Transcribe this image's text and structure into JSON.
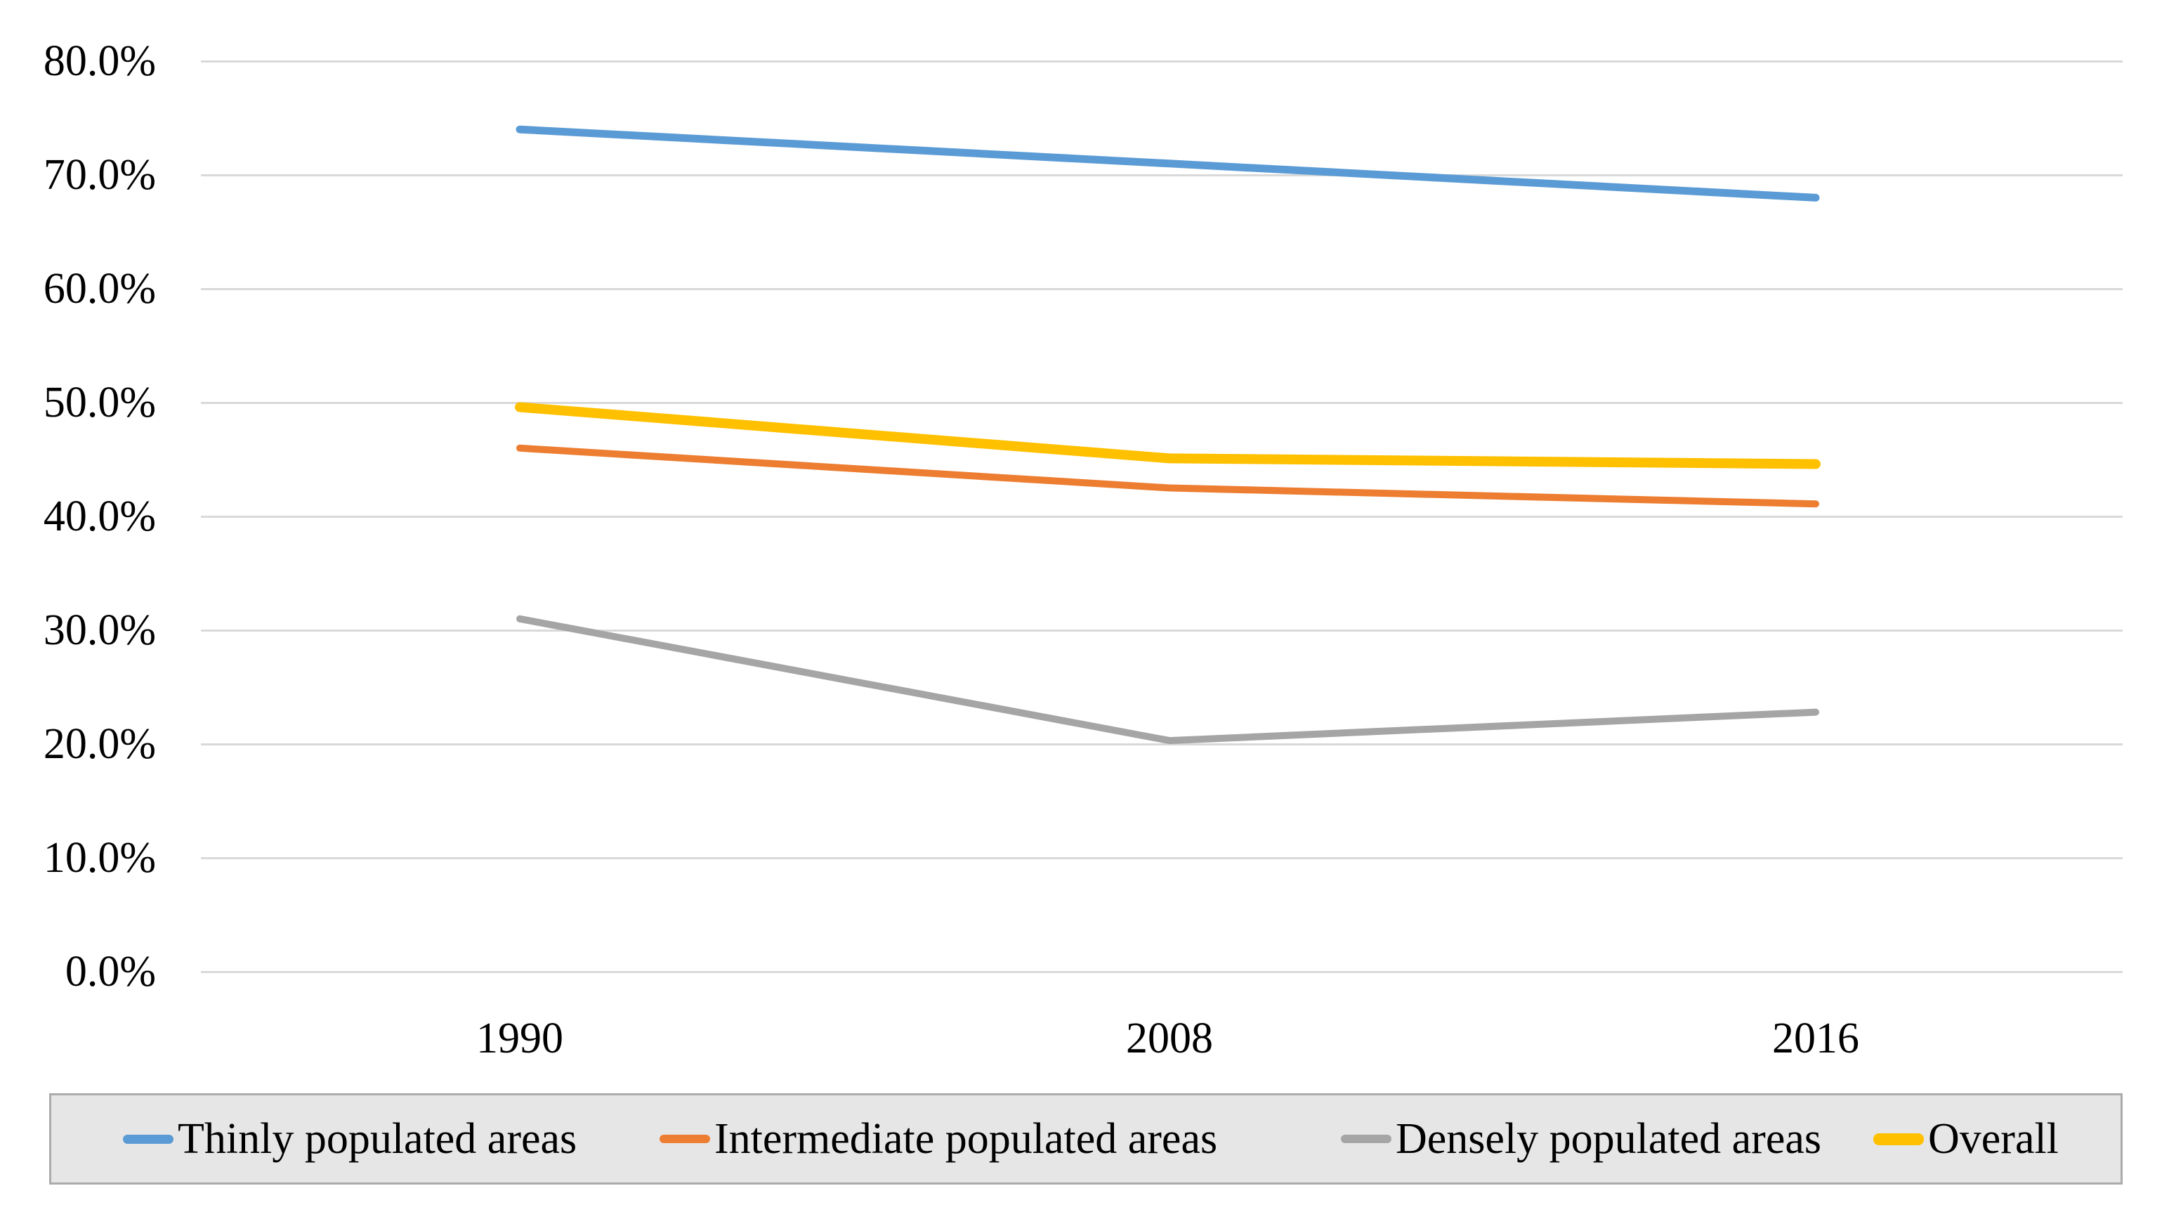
{
  "chart_data": {
    "type": "line",
    "title": "",
    "xlabel": "",
    "ylabel": "",
    "x": [
      "1990",
      "2008",
      "2016"
    ],
    "series": [
      {
        "name": "Thinly populated areas",
        "color": "#5B9BD5",
        "stroke_width": 11,
        "values": [
          74.0,
          71.0,
          68.0
        ]
      },
      {
        "name": "Intermediate populated areas",
        "color": "#ED7D31",
        "stroke_width": 10,
        "values": [
          46.0,
          42.5,
          41.1
        ]
      },
      {
        "name": "Densely populated areas",
        "color": "#A5A5A5",
        "stroke_width": 10,
        "values": [
          31.0,
          20.3,
          22.8
        ]
      },
      {
        "name": "Overall",
        "color": "#FFC000",
        "stroke_width": 14,
        "values": [
          49.6,
          45.1,
          44.6
        ]
      }
    ],
    "y_ticks": [
      "80.0%",
      "70.0%",
      "60.0%",
      "50.0%",
      "40.0%",
      "30.0%",
      "20.0%",
      "10.0%",
      "0.0%"
    ],
    "y_tick_values": [
      80,
      70,
      60,
      50,
      40,
      30,
      20,
      10,
      0
    ],
    "ylim": [
      0,
      80
    ],
    "grid": "horizontal-only",
    "gridline_color": "#D9D9D9",
    "legend_position": "bottom",
    "legend_background": "#E7E6E6",
    "legend_border_color": "#ABABAB"
  }
}
